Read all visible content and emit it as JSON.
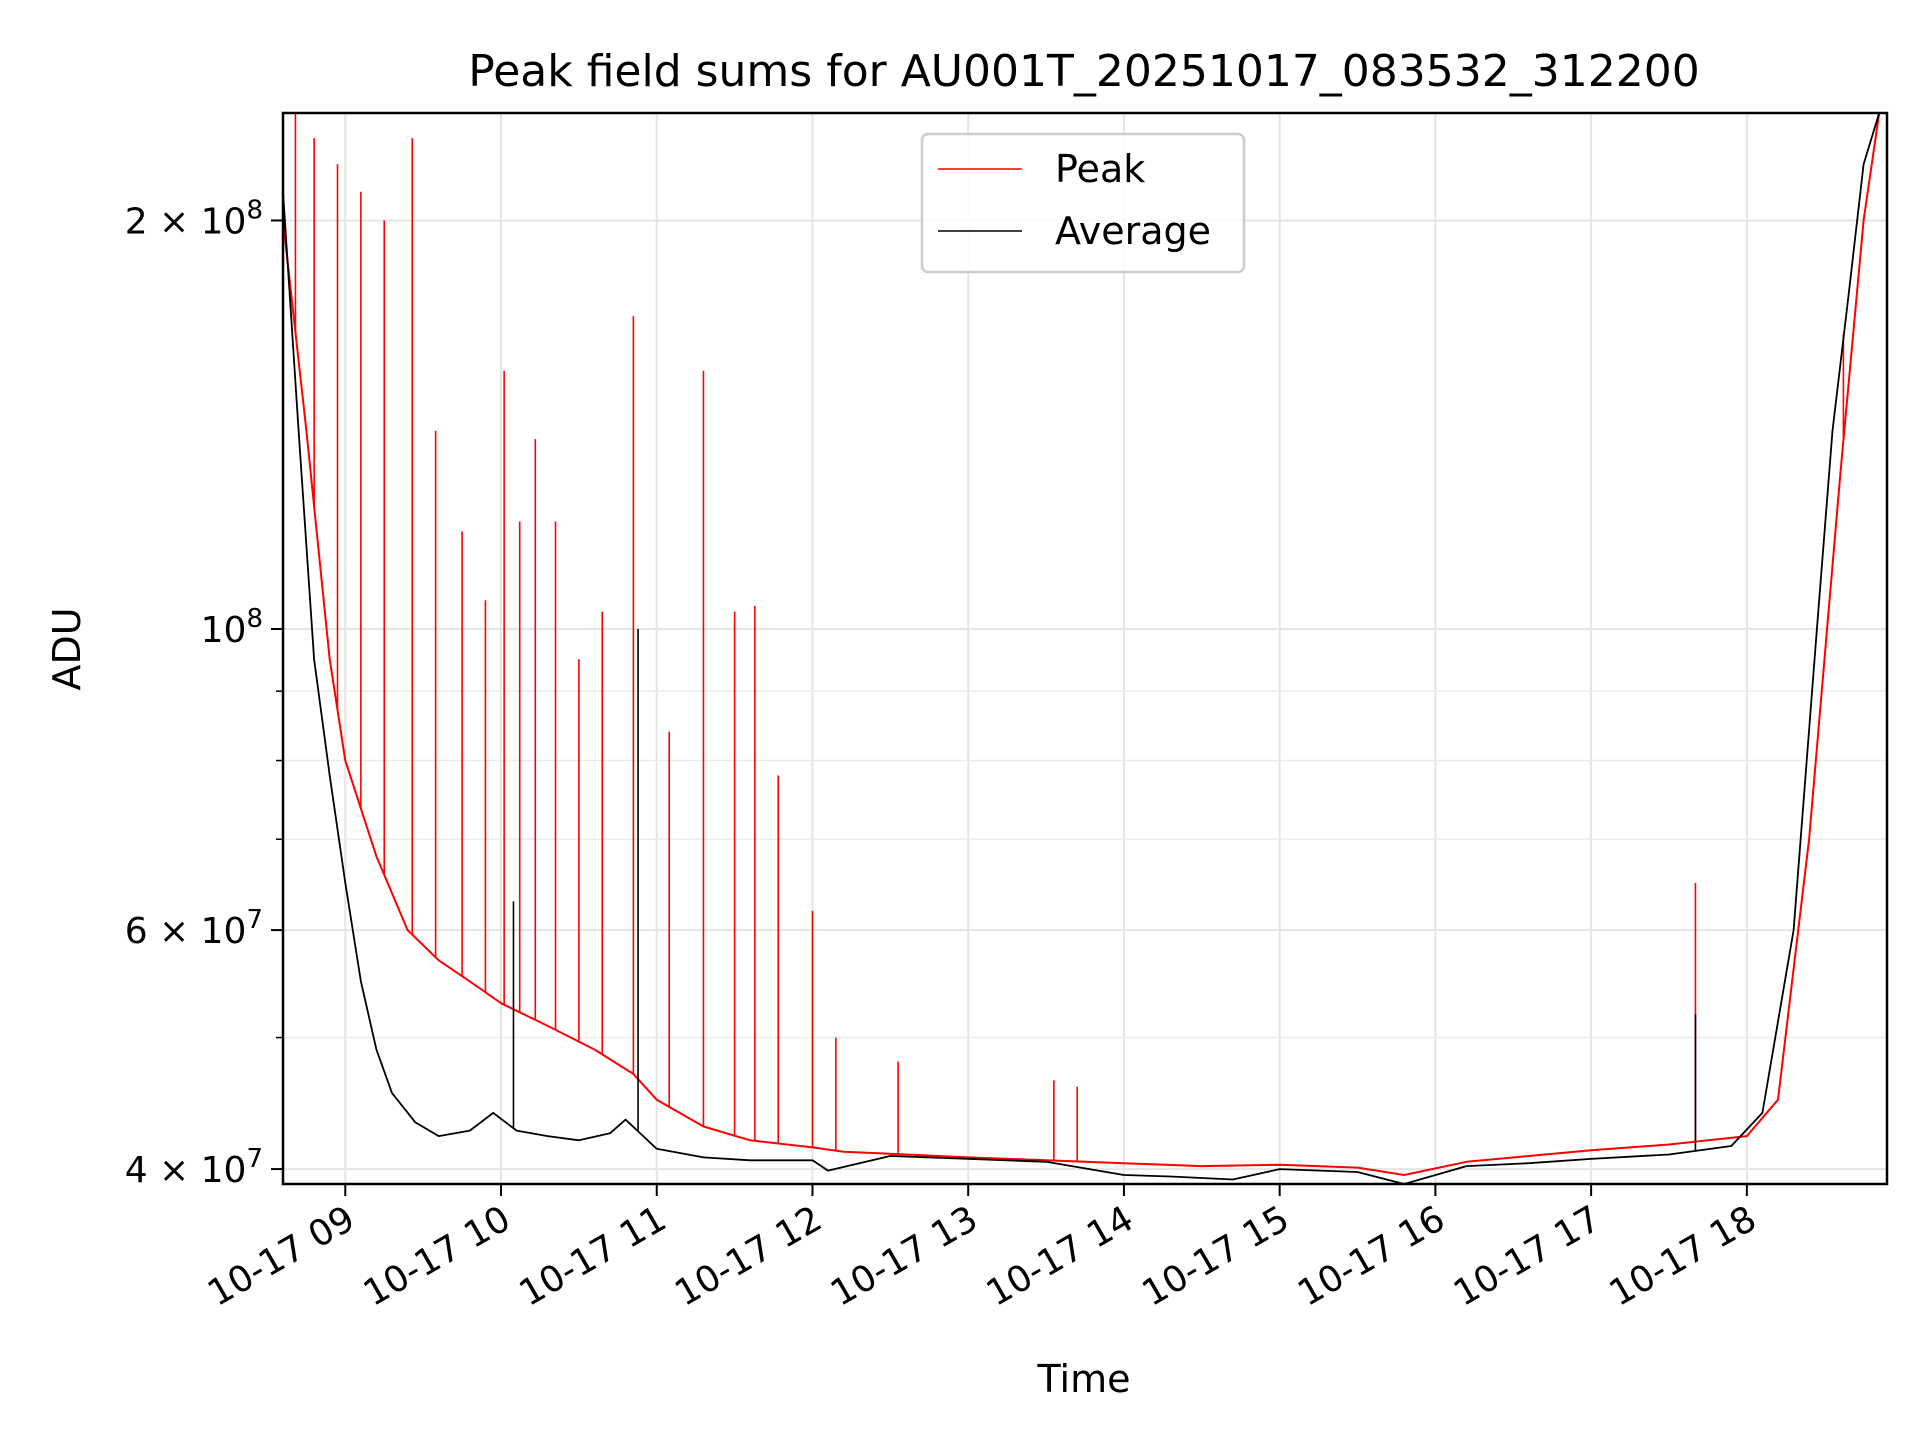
{
  "chart_data": {
    "type": "line",
    "title": "Peak field sums for AU001T_20251017_083532_312200",
    "xlabel": "Time",
    "ylabel": "ADU",
    "yscale": "log",
    "ylim": [
      39000000,
      240000000
    ],
    "xlim": [
      8.6,
      18.9
    ],
    "grid": true,
    "legend_position": "top-center",
    "x_tick_values": [
      9,
      10,
      11,
      12,
      13,
      14,
      15,
      16,
      17,
      18
    ],
    "x_tick_labels": [
      "10-17 09",
      "10-17 10",
      "10-17 11",
      "10-17 12",
      "10-17 13",
      "10-17 14",
      "10-17 15",
      "10-17 16",
      "10-17 17",
      "10-17 18"
    ],
    "y_major_ticks": [
      {
        "value": 40000000,
        "base": "4 × 10",
        "exp": "7"
      },
      {
        "value": 60000000,
        "base": "6 × 10",
        "exp": "7"
      },
      {
        "value": 100000000,
        "base": "10",
        "exp": "8"
      },
      {
        "value": 200000000,
        "base": "2 × 10",
        "exp": "8"
      }
    ],
    "y_minor_ticks": [
      50000000,
      70000000,
      80000000,
      90000000,
      300000000
    ],
    "series": [
      {
        "name": "Peak",
        "color": "#ff0000",
        "x": [
          8.6,
          8.75,
          8.9,
          9.0,
          9.2,
          9.4,
          9.6,
          9.8,
          10.0,
          10.3,
          10.6,
          10.85,
          11.0,
          11.3,
          11.6,
          12.0,
          12.2,
          12.6,
          13.0,
          13.5,
          14.0,
          14.5,
          15.0,
          15.5,
          15.8,
          16.2,
          16.6,
          17.0,
          17.5,
          18.0,
          18.2,
          18.4,
          18.6,
          18.75,
          18.85
        ],
        "values": [
          200000000,
          140000000,
          95000000,
          80000000,
          68000000,
          60000000,
          57000000,
          55000000,
          53000000,
          51000000,
          49000000,
          47000000,
          45000000,
          43000000,
          42000000,
          41500000,
          41200000,
          41000000,
          40800000,
          40600000,
          40400000,
          40200000,
          40300000,
          40100000,
          39600000,
          40500000,
          40900000,
          41300000,
          41700000,
          42300000,
          45000000,
          70000000,
          130000000,
          200000000,
          240000000
        ],
        "spikes": [
          {
            "x": 8.68,
            "value": 240000000
          },
          {
            "x": 8.8,
            "value": 230000000
          },
          {
            "x": 8.95,
            "value": 220000000
          },
          {
            "x": 9.1,
            "value": 210000000
          },
          {
            "x": 9.25,
            "value": 200000000
          },
          {
            "x": 9.43,
            "value": 230000000
          },
          {
            "x": 9.58,
            "value": 140000000
          },
          {
            "x": 9.75,
            "value": 118000000
          },
          {
            "x": 9.9,
            "value": 105000000
          },
          {
            "x": 10.02,
            "value": 155000000
          },
          {
            "x": 10.12,
            "value": 120000000
          },
          {
            "x": 10.22,
            "value": 138000000
          },
          {
            "x": 10.35,
            "value": 120000000
          },
          {
            "x": 10.5,
            "value": 95000000
          },
          {
            "x": 10.65,
            "value": 103000000
          },
          {
            "x": 10.85,
            "value": 170000000
          },
          {
            "x": 11.08,
            "value": 84000000
          },
          {
            "x": 11.3,
            "value": 155000000
          },
          {
            "x": 11.5,
            "value": 103000000
          },
          {
            "x": 11.63,
            "value": 104000000
          },
          {
            "x": 11.78,
            "value": 78000000
          },
          {
            "x": 12.0,
            "value": 62000000
          },
          {
            "x": 12.15,
            "value": 50000000
          },
          {
            "x": 12.55,
            "value": 48000000
          },
          {
            "x": 13.55,
            "value": 46500000
          },
          {
            "x": 13.7,
            "value": 46000000
          },
          {
            "x": 17.67,
            "value": 65000000
          },
          {
            "x": 18.62,
            "value": 165000000
          }
        ]
      },
      {
        "name": "Average",
        "color": "#000000",
        "x": [
          8.6,
          8.7,
          8.8,
          8.9,
          9.0,
          9.1,
          9.2,
          9.3,
          9.45,
          9.6,
          9.8,
          9.95,
          10.1,
          10.3,
          10.5,
          10.7,
          10.8,
          11.0,
          11.3,
          11.6,
          12.0,
          12.1,
          12.5,
          13.0,
          13.5,
          14.0,
          14.3,
          14.7,
          15.0,
          15.5,
          15.8,
          16.2,
          16.6,
          17.0,
          17.5,
          17.9,
          18.1,
          18.3,
          18.45,
          18.55,
          18.65,
          18.75,
          18.85
        ],
        "values": [
          210000000,
          140000000,
          95000000,
          78000000,
          65000000,
          55000000,
          49000000,
          45500000,
          43300000,
          42300000,
          42700000,
          44000000,
          42700000,
          42300000,
          42000000,
          42500000,
          43500000,
          41400000,
          40800000,
          40600000,
          40600000,
          39900000,
          40900000,
          40700000,
          40500000,
          39600000,
          39500000,
          39300000,
          40000000,
          39800000,
          38900000,
          40200000,
          40400000,
          40700000,
          41000000,
          41600000,
          44000000,
          60000000,
          100000000,
          140000000,
          175000000,
          220000000,
          240000000
        ],
        "spikes": [
          {
            "x": 10.08,
            "value": 63000000
          },
          {
            "x": 10.88,
            "value": 100000000
          },
          {
            "x": 17.67,
            "value": 52000000
          }
        ]
      }
    ]
  }
}
